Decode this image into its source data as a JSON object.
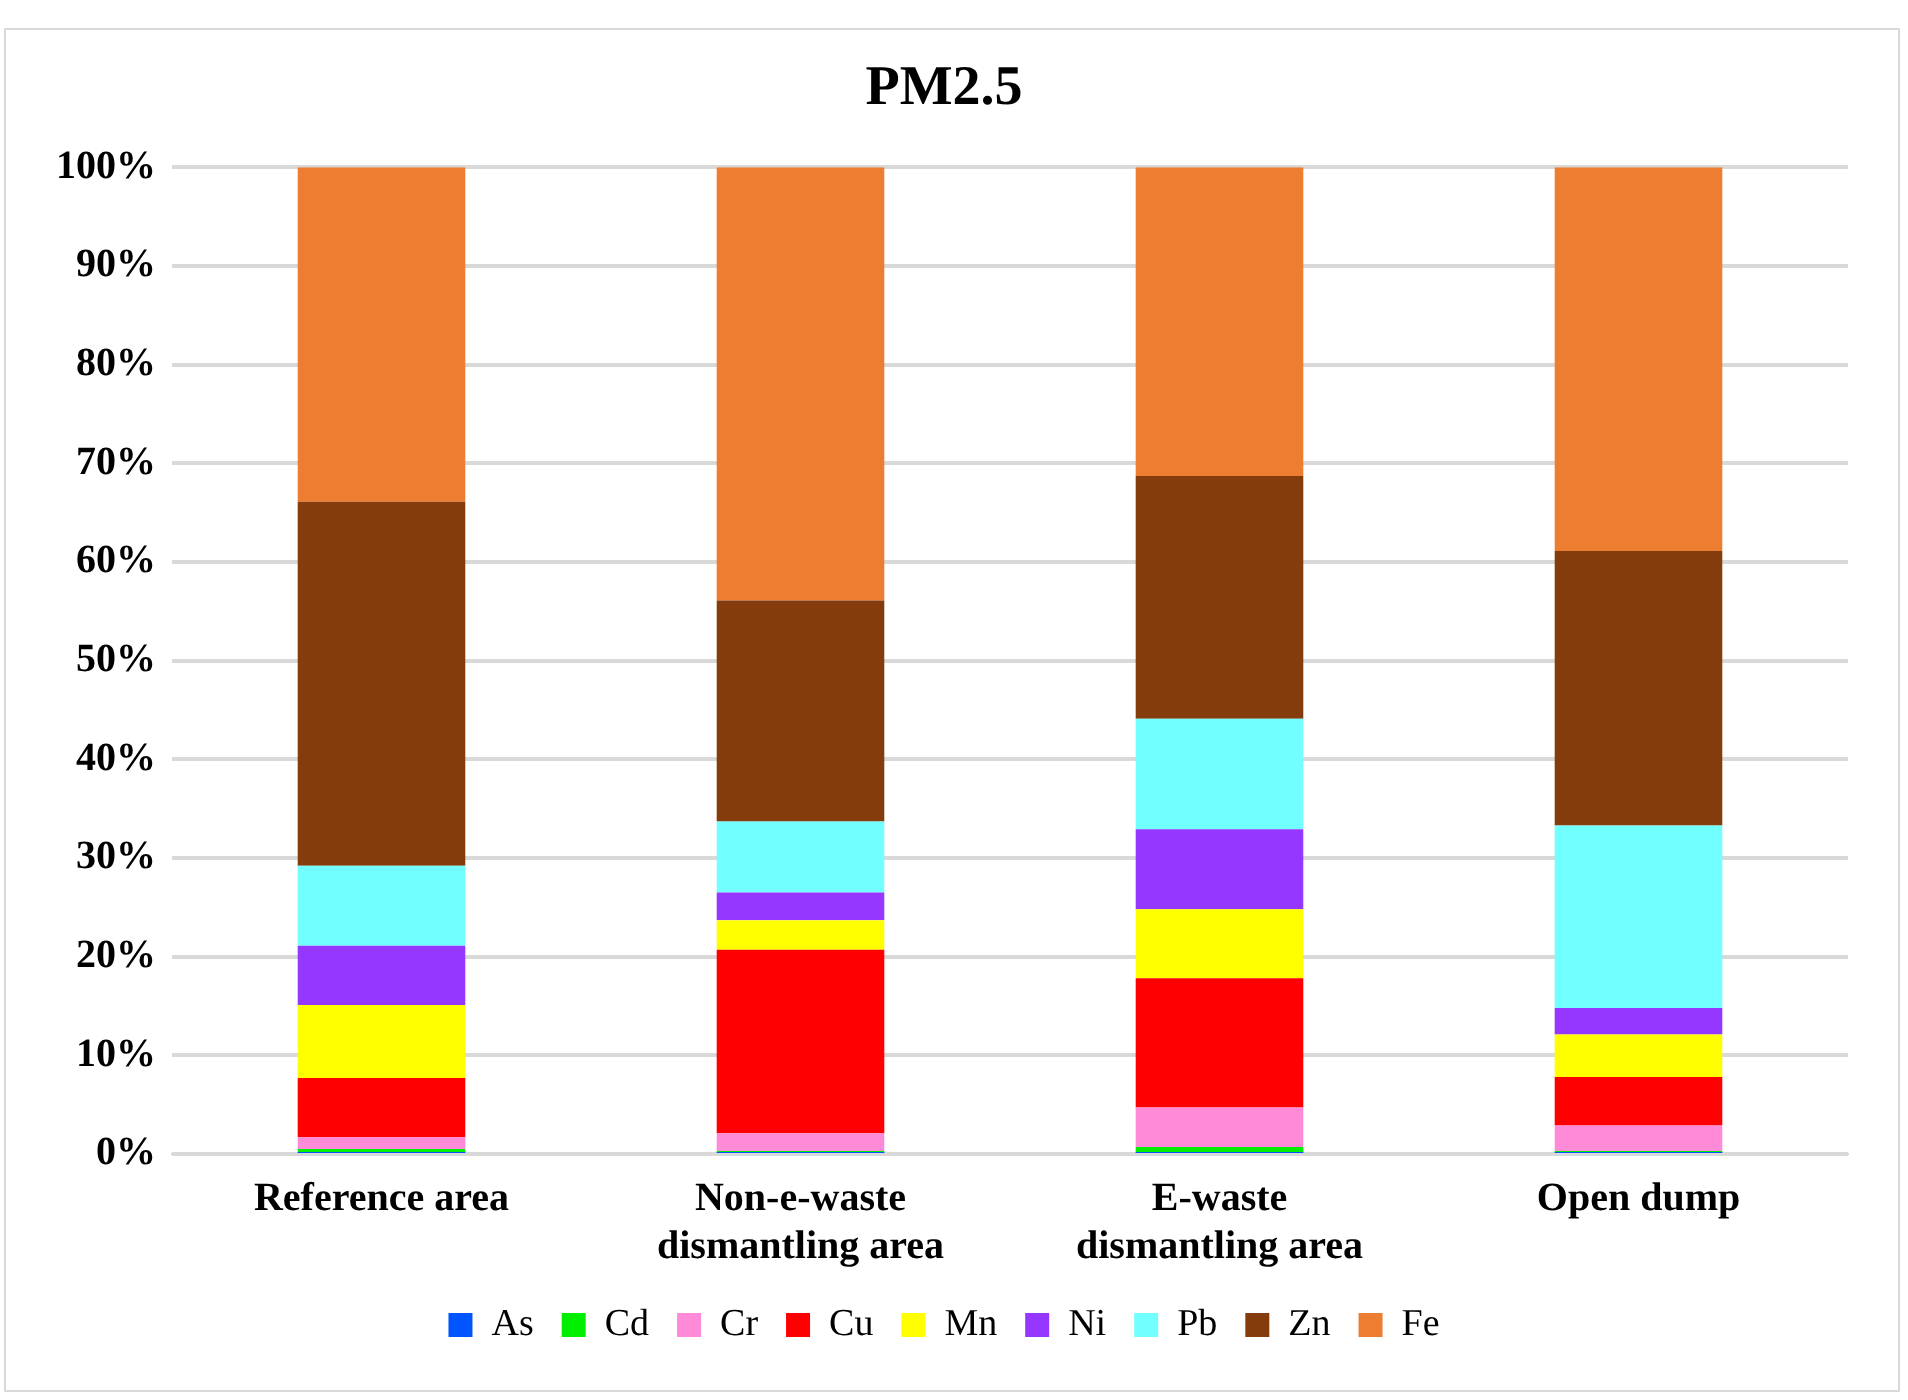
{
  "chart_data": {
    "type": "bar",
    "title": "PM2.5",
    "stacked": true,
    "grid": "y",
    "legend": "bottom",
    "categories": [
      "Reference area",
      "Non-e-waste dismantling area",
      "E-waste dismantling area",
      "Open dump"
    ],
    "ylim": [
      0,
      100
    ],
    "yticks": [
      {
        "value": 0,
        "label": "0%"
      },
      {
        "value": 10,
        "label": "10%"
      },
      {
        "value": 20,
        "label": "20%"
      },
      {
        "value": 30,
        "label": "30%"
      },
      {
        "value": 40,
        "label": "40%"
      },
      {
        "value": 50,
        "label": "50%"
      },
      {
        "value": 60,
        "label": "60%"
      },
      {
        "value": 70,
        "label": "70%"
      },
      {
        "value": 80,
        "label": "80%"
      },
      {
        "value": 90,
        "label": "90%"
      },
      {
        "value": 100,
        "label": "100%"
      }
    ],
    "series": [
      {
        "name": "As",
        "color": "#0055ff",
        "values": [
          0.1,
          0.1,
          0.1,
          0.1
        ]
      },
      {
        "name": "Cd",
        "color": "#00ee00",
        "values": [
          0.4,
          0.2,
          0.6,
          0.2
        ]
      },
      {
        "name": "Cr",
        "color": "#ff8ad8",
        "values": [
          1.2,
          1.8,
          4.0,
          2.6
        ]
      },
      {
        "name": "Cu",
        "color": "#ff0000",
        "values": [
          6.0,
          18.6,
          13.1,
          4.9
        ]
      },
      {
        "name": "Mn",
        "color": "#ffff00",
        "values": [
          7.4,
          3.0,
          7.0,
          4.3
        ]
      },
      {
        "name": "Ni",
        "color": "#9537ff",
        "values": [
          6.0,
          2.8,
          8.1,
          2.7
        ]
      },
      {
        "name": "Pb",
        "color": "#72ffff",
        "values": [
          8.1,
          7.2,
          11.2,
          18.5
        ]
      },
      {
        "name": "Zn",
        "color": "#843c0c",
        "values": [
          36.9,
          22.4,
          24.6,
          27.8
        ]
      },
      {
        "name": "Fe",
        "color": "#ed7d31",
        "values": [
          33.9,
          43.9,
          31.3,
          38.9
        ]
      }
    ]
  }
}
